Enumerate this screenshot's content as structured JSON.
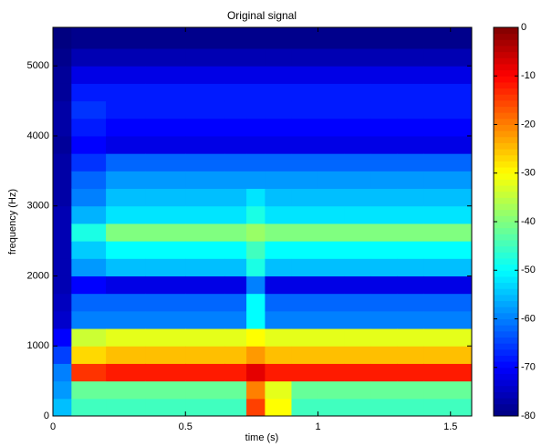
{
  "chart_data": {
    "type": "heatmap",
    "title": "Original signal",
    "x_label": "time (s)",
    "y_label": "frequency (Hz)",
    "colormap": "jet",
    "xlim": [
      0,
      1.58
    ],
    "xticks": [
      0,
      0.5,
      1,
      1.5
    ],
    "ylim": [
      0,
      5550
    ],
    "yticks": [
      0,
      1000,
      2000,
      3000,
      4000,
      5000
    ],
    "clim": [
      -80,
      0
    ],
    "cticks": [
      0,
      -10,
      -20,
      -30,
      -40,
      -50,
      -60,
      -70,
      -80
    ],
    "xbins": [
      0,
      0.07,
      0.2,
      0.35,
      0.5,
      0.65,
      0.73,
      0.8,
      0.9,
      1.0,
      1.1,
      1.2,
      1.3,
      1.4,
      1.58
    ],
    "ybins": [
      0,
      250,
      500,
      750,
      1000,
      1250,
      1500,
      1750,
      2000,
      2250,
      2500,
      2750,
      3000,
      3250,
      3500,
      3750,
      4000,
      4250,
      4500,
      4750,
      5000,
      5250,
      5550
    ],
    "z": [
      [
        -55,
        -58,
        -60,
        -65,
        -70,
        -74,
        -75,
        -76,
        -76,
        -76,
        -76,
        -76,
        -77,
        -77,
        -77,
        -78,
        -77,
        -77,
        -78,
        -78,
        -79,
        -80
      ],
      [
        -45,
        -42,
        -14,
        -27,
        -34,
        -60,
        -62,
        -70,
        -58,
        -54,
        -48,
        -56,
        -60,
        -62,
        -66,
        -70,
        -68,
        -66,
        -68,
        -72,
        -76,
        -79
      ],
      [
        -45,
        -42,
        -12,
        -25,
        -32,
        -60,
        -62,
        -72,
        -55,
        -50,
        -40,
        -52,
        -55,
        -58,
        -62,
        -72,
        -70,
        -68,
        -68,
        -72,
        -76,
        -79
      ],
      [
        -45,
        -42,
        -12,
        -25,
        -32,
        -60,
        -62,
        -72,
        -55,
        -50,
        -40,
        -52,
        -55,
        -58,
        -62,
        -72,
        -70,
        -68,
        -68,
        -72,
        -76,
        -79
      ],
      [
        -45,
        -42,
        -12,
        -25,
        -32,
        -60,
        -62,
        -72,
        -55,
        -50,
        -40,
        -52,
        -55,
        -58,
        -62,
        -72,
        -70,
        -68,
        -68,
        -72,
        -76,
        -79
      ],
      [
        -45,
        -42,
        -12,
        -25,
        -32,
        -60,
        -62,
        -72,
        -55,
        -50,
        -40,
        -52,
        -55,
        -58,
        -62,
        -72,
        -70,
        -68,
        -68,
        -72,
        -76,
        -79
      ],
      [
        -15,
        -20,
        -8,
        -22,
        -30,
        -50,
        -50,
        -60,
        -48,
        -45,
        -38,
        -48,
        -52,
        -58,
        -62,
        -72,
        -70,
        -68,
        -68,
        -72,
        -76,
        -79
      ],
      [
        -30,
        -32,
        -12,
        -25,
        -32,
        -60,
        -62,
        -72,
        -55,
        -50,
        -40,
        -52,
        -55,
        -58,
        -62,
        -72,
        -70,
        -68,
        -68,
        -72,
        -76,
        -79
      ],
      [
        -45,
        -42,
        -12,
        -25,
        -32,
        -60,
        -62,
        -72,
        -55,
        -50,
        -40,
        -52,
        -55,
        -58,
        -62,
        -72,
        -70,
        -68,
        -68,
        -72,
        -76,
        -79
      ],
      [
        -45,
        -42,
        -12,
        -25,
        -32,
        -60,
        -62,
        -72,
        -55,
        -50,
        -40,
        -52,
        -55,
        -58,
        -62,
        -72,
        -70,
        -68,
        -68,
        -72,
        -76,
        -79
      ],
      [
        -45,
        -42,
        -12,
        -25,
        -32,
        -60,
        -62,
        -72,
        -55,
        -50,
        -40,
        -52,
        -55,
        -58,
        -62,
        -72,
        -70,
        -68,
        -68,
        -72,
        -76,
        -79
      ],
      [
        -45,
        -42,
        -12,
        -25,
        -32,
        -60,
        -62,
        -72,
        -55,
        -50,
        -40,
        -52,
        -55,
        -58,
        -62,
        -72,
        -70,
        -68,
        -68,
        -72,
        -76,
        -79
      ],
      [
        -45,
        -42,
        -12,
        -25,
        -32,
        -60,
        -62,
        -72,
        -55,
        -50,
        -40,
        -52,
        -55,
        -58,
        -62,
        -72,
        -70,
        -68,
        -68,
        -72,
        -76,
        -79
      ],
      [
        -45,
        -42,
        -12,
        -25,
        -32,
        -60,
        -62,
        -72,
        -55,
        -50,
        -40,
        -52,
        -55,
        -58,
        -62,
        -72,
        -70,
        -68,
        -68,
        -72,
        -76,
        -79
      ]
    ]
  }
}
